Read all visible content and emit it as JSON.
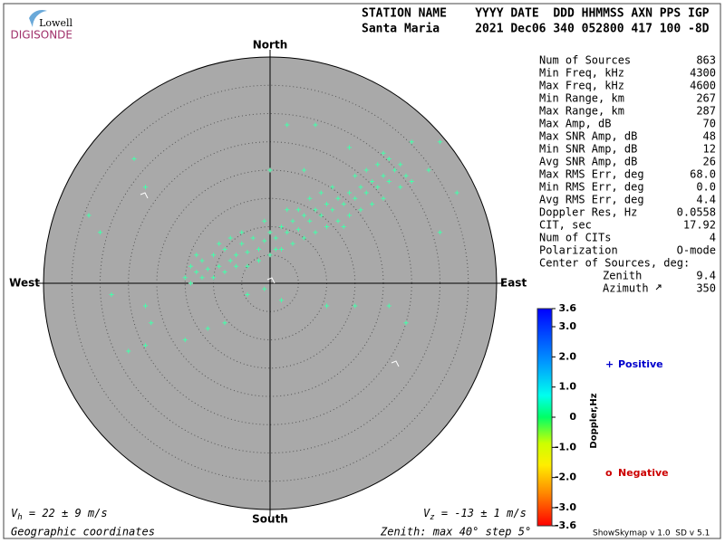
{
  "header": {
    "logo_top": "Lowell",
    "logo_bottom": "DIGISONDE",
    "line1": "STATION NAME    YYYY DATE  DDD HHMMSS AXN PPS IGP",
    "line2": "Santa Maria     2021 Dec06 340 052800 417 100 -8D"
  },
  "stats": [
    [
      "Num of Sources",
      "863"
    ],
    [
      "Min Freq, kHz",
      "4300"
    ],
    [
      "Max Freq, kHz",
      "4600"
    ],
    [
      "Min Range, km",
      "267"
    ],
    [
      "Max Range, km",
      "287"
    ],
    [
      "Max Amp, dB",
      "70"
    ],
    [
      "Max SNR Amp, dB",
      "48"
    ],
    [
      "Min SNR Amp, dB",
      "12"
    ],
    [
      "Avg SNR Amp, dB",
      "26"
    ],
    [
      "Max RMS Err, deg",
      "68.0"
    ],
    [
      "Min RMS Err, deg",
      "0.0"
    ],
    [
      "Avg RMS Err, deg",
      "4.4"
    ],
    [
      "Doppler Res, Hz",
      "0.0558"
    ],
    [
      "CIT, sec",
      "17.92"
    ],
    [
      "Num of CITs",
      "4"
    ],
    [
      "Polarization",
      "O-mode"
    ]
  ],
  "center": {
    "title": "Center of Sources, deg:",
    "zenith_label": "Zenith",
    "zenith": "9.4",
    "azimuth_label": "Azimuth",
    "azimuth": "350"
  },
  "chart_data": {
    "type": "skymap",
    "directions": {
      "north": "North",
      "south": "South",
      "east": "East",
      "west": "West"
    },
    "zlim": [
      0,
      40
    ],
    "rings": [
      5,
      10,
      15,
      20,
      25,
      30,
      35,
      40
    ],
    "series": [
      {
        "name": "Positive",
        "color": "#44ffaa",
        "x": [
          -15,
          -14,
          -13,
          -12,
          -11,
          -10,
          -9,
          -8,
          -7,
          -6,
          -5,
          -4,
          -3,
          -2,
          -1,
          0,
          1,
          2,
          3,
          4,
          5,
          6,
          7,
          8,
          9,
          10,
          11,
          12,
          13,
          14,
          15,
          16,
          17,
          18,
          19,
          20,
          21,
          22,
          23,
          24,
          -14,
          -12,
          -10,
          -8,
          -6,
          -4,
          -2,
          0,
          2,
          4,
          6,
          8,
          10,
          12,
          14,
          16,
          18,
          20,
          -9,
          -5,
          -1,
          3,
          7,
          11,
          15,
          19,
          -13,
          -7,
          1,
          5,
          9,
          13,
          17,
          21,
          23,
          25,
          -24,
          -32,
          -30,
          -22,
          -28,
          -22,
          -21,
          -22,
          -25,
          -15,
          -11,
          -8,
          -4,
          2,
          10,
          15,
          21,
          24,
          14,
          8,
          3,
          20,
          25,
          30,
          28,
          33,
          30,
          6,
          0,
          -1
        ],
        "y": [
          1,
          3,
          2,
          4,
          2.5,
          5,
          3,
          6,
          4,
          5,
          7,
          5.5,
          8,
          6,
          7.5,
          9,
          8,
          10,
          9,
          11,
          9.5,
          12,
          11,
          13,
          12,
          14,
          13,
          15,
          14,
          16,
          15,
          17,
          16,
          18,
          17,
          19,
          18,
          20,
          17,
          19,
          0,
          1,
          1,
          2,
          3,
          3,
          4,
          5,
          6,
          7,
          8,
          9,
          10,
          11,
          12,
          13,
          14,
          15,
          7,
          9,
          11,
          13,
          15,
          17,
          19,
          21,
          5,
          8,
          6,
          13,
          16,
          10,
          20,
          22,
          21,
          18,
          22,
          12,
          9,
          17,
          -2,
          -4,
          -7,
          -11,
          -12,
          -10,
          -8,
          -7,
          -2,
          -3,
          -4,
          -4,
          -4,
          -7,
          24,
          28,
          28,
          23,
          25,
          25,
          20,
          16,
          9,
          20,
          20,
          -1
        ]
      }
    ],
    "colorbar": {
      "label": "Doppler,Hz",
      "clim": [
        -3.6,
        3.6
      ],
      "ticks": [
        3.6,
        {
          "value": 3,
          "label": "3.0"
        },
        {
          "value": 2,
          "label": "2.0"
        },
        {
          "value": 1,
          "label": "1.0"
        },
        0,
        {
          "value": -1,
          "label": "-1.0"
        },
        {
          "value": -2,
          "label": "-2.0"
        },
        {
          "value": -3,
          "label": "-3.0"
        },
        -3.6
      ]
    },
    "legend": [
      {
        "symbol": "+",
        "name": "Positive",
        "color": "#0000cc"
      },
      {
        "symbol": "o",
        "name": "Negative",
        "color": "#cc0000"
      }
    ]
  },
  "footer": {
    "vh": {
      "symbol": "V",
      "sub": "h",
      "text": " = 22 ± 9 m/s"
    },
    "vz": {
      "symbol": "V",
      "sub": "z",
      "text": " = -13 ± 1 m/s"
    },
    "coords": "Geographic coordinates",
    "zenith": "Zenith: max 40°  step 5°",
    "version": "ShowSkymap v 1.0  SD v 5.1"
  }
}
